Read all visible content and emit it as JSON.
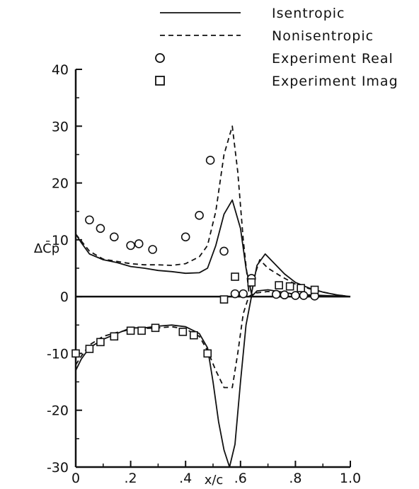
{
  "chart_data": {
    "type": "line",
    "xlabel": "x/c",
    "ylabel": "ΔC̄p",
    "xlim": [
      0,
      1.0
    ],
    "ylim": [
      -30,
      40
    ],
    "x_ticks": [
      "0",
      ".2",
      ".4",
      ".6",
      ".8",
      "1.0"
    ],
    "x_tick_values": [
      0,
      0.2,
      0.4,
      0.6,
      0.8,
      1.0
    ],
    "y_ticks": [
      "-30",
      "-20",
      "-10",
      "0",
      "10",
      "20",
      "30",
      "40"
    ],
    "y_tick_values": [
      -30,
      -20,
      -10,
      0,
      10,
      20,
      30,
      40
    ],
    "grid": false,
    "legend_position": "top-right",
    "series": [
      {
        "name": "Isentropic",
        "style": "solid",
        "part": "real",
        "x": [
          0,
          0.02,
          0.05,
          0.1,
          0.15,
          0.2,
          0.25,
          0.3,
          0.35,
          0.4,
          0.45,
          0.48,
          0.51,
          0.54,
          0.57,
          0.6,
          0.62,
          0.64,
          0.66,
          0.69,
          0.72,
          0.76,
          0.8,
          0.85,
          0.9,
          0.95,
          1.0
        ],
        "y": [
          11,
          9.5,
          7.5,
          6.5,
          6,
          5.3,
          5,
          4.6,
          4.4,
          4.1,
          4.2,
          5,
          9,
          14.5,
          17,
          12,
          5,
          0.5,
          5.5,
          7.5,
          6,
          4,
          2.5,
          1.5,
          0.8,
          0.3,
          0
        ]
      },
      {
        "name": "Nonisentropic",
        "style": "dashed",
        "part": "real",
        "x": [
          0,
          0.02,
          0.05,
          0.1,
          0.15,
          0.2,
          0.25,
          0.3,
          0.35,
          0.4,
          0.45,
          0.48,
          0.51,
          0.54,
          0.57,
          0.59,
          0.61,
          0.63,
          0.65,
          0.67,
          0.7,
          0.75,
          0.8,
          0.85,
          0.9,
          0.95,
          1.0
        ],
        "y": [
          11,
          9.8,
          8,
          6.6,
          6.2,
          5.8,
          5.6,
          5.6,
          5.5,
          5.8,
          7,
          9,
          15,
          25,
          30,
          22,
          10,
          1,
          3.5,
          6.5,
          5,
          3.5,
          2.2,
          1.4,
          0.8,
          0.3,
          0
        ]
      },
      {
        "name": "Isentropic",
        "style": "solid",
        "part": "imag",
        "x": [
          0,
          0.02,
          0.05,
          0.1,
          0.15,
          0.2,
          0.25,
          0.3,
          0.35,
          0.4,
          0.45,
          0.48,
          0.5,
          0.52,
          0.54,
          0.56,
          0.58,
          0.6,
          0.62,
          0.64,
          0.66,
          0.7,
          0.75,
          0.8,
          0.85,
          0.9,
          0.95,
          1.0
        ],
        "y": [
          -13,
          -11,
          -9,
          -7.5,
          -6.5,
          -5.5,
          -5.5,
          -5.2,
          -5,
          -5.3,
          -6.5,
          -9,
          -15,
          -22,
          -27,
          -30,
          -26,
          -15,
          -5,
          0,
          1,
          1.2,
          0.8,
          0.4,
          0.3,
          0.2,
          0.1,
          0
        ]
      },
      {
        "name": "Nonisentropic",
        "style": "dashed",
        "part": "imag",
        "x": [
          0,
          0.02,
          0.05,
          0.1,
          0.15,
          0.2,
          0.25,
          0.3,
          0.35,
          0.4,
          0.45,
          0.48,
          0.51,
          0.54,
          0.57,
          0.59,
          0.61,
          0.63,
          0.65,
          0.7,
          0.75,
          0.8,
          0.85,
          0.9,
          0.95,
          1.0
        ],
        "y": [
          -12,
          -10.5,
          -8.5,
          -7,
          -6.3,
          -5.8,
          -5.6,
          -5.5,
          -5.3,
          -5.7,
          -7,
          -9.5,
          -13,
          -16,
          -16,
          -10,
          -3,
          0,
          0.6,
          0.9,
          0.7,
          0.4,
          0.2,
          0.1,
          0.05,
          0
        ]
      },
      {
        "name": "Experiment Real",
        "style": "circle",
        "x": [
          0.05,
          0.09,
          0.14,
          0.2,
          0.23,
          0.28,
          0.4,
          0.45,
          0.49,
          0.54,
          0.58,
          0.61,
          0.64,
          0.73,
          0.76,
          0.8,
          0.83,
          0.87
        ],
        "y": [
          13.5,
          12,
          10.5,
          9,
          9.3,
          8.3,
          10.5,
          14.3,
          24,
          8,
          0.5,
          0.5,
          3.2,
          0.4,
          0.3,
          0.2,
          0.2,
          0.1
        ]
      },
      {
        "name": "Experiment Imag",
        "style": "square",
        "x": [
          0,
          0.05,
          0.09,
          0.14,
          0.2,
          0.24,
          0.29,
          0.39,
          0.43,
          0.48,
          0.54,
          0.58,
          0.64,
          0.74,
          0.78,
          0.82,
          0.87
        ],
        "y": [
          -10,
          -9.2,
          -8,
          -7,
          -6,
          -6,
          -5.5,
          -6.2,
          -6.8,
          -10,
          -0.5,
          3.5,
          2.5,
          2,
          1.8,
          1.5,
          1.2
        ]
      }
    ],
    "legend": [
      {
        "label": "Isentropic",
        "style": "solid"
      },
      {
        "label": "Nonisentropic",
        "style": "dashed"
      },
      {
        "label": "Experiment Real",
        "style": "circle"
      },
      {
        "label": "Experiment Imag",
        "style": "square"
      }
    ]
  }
}
